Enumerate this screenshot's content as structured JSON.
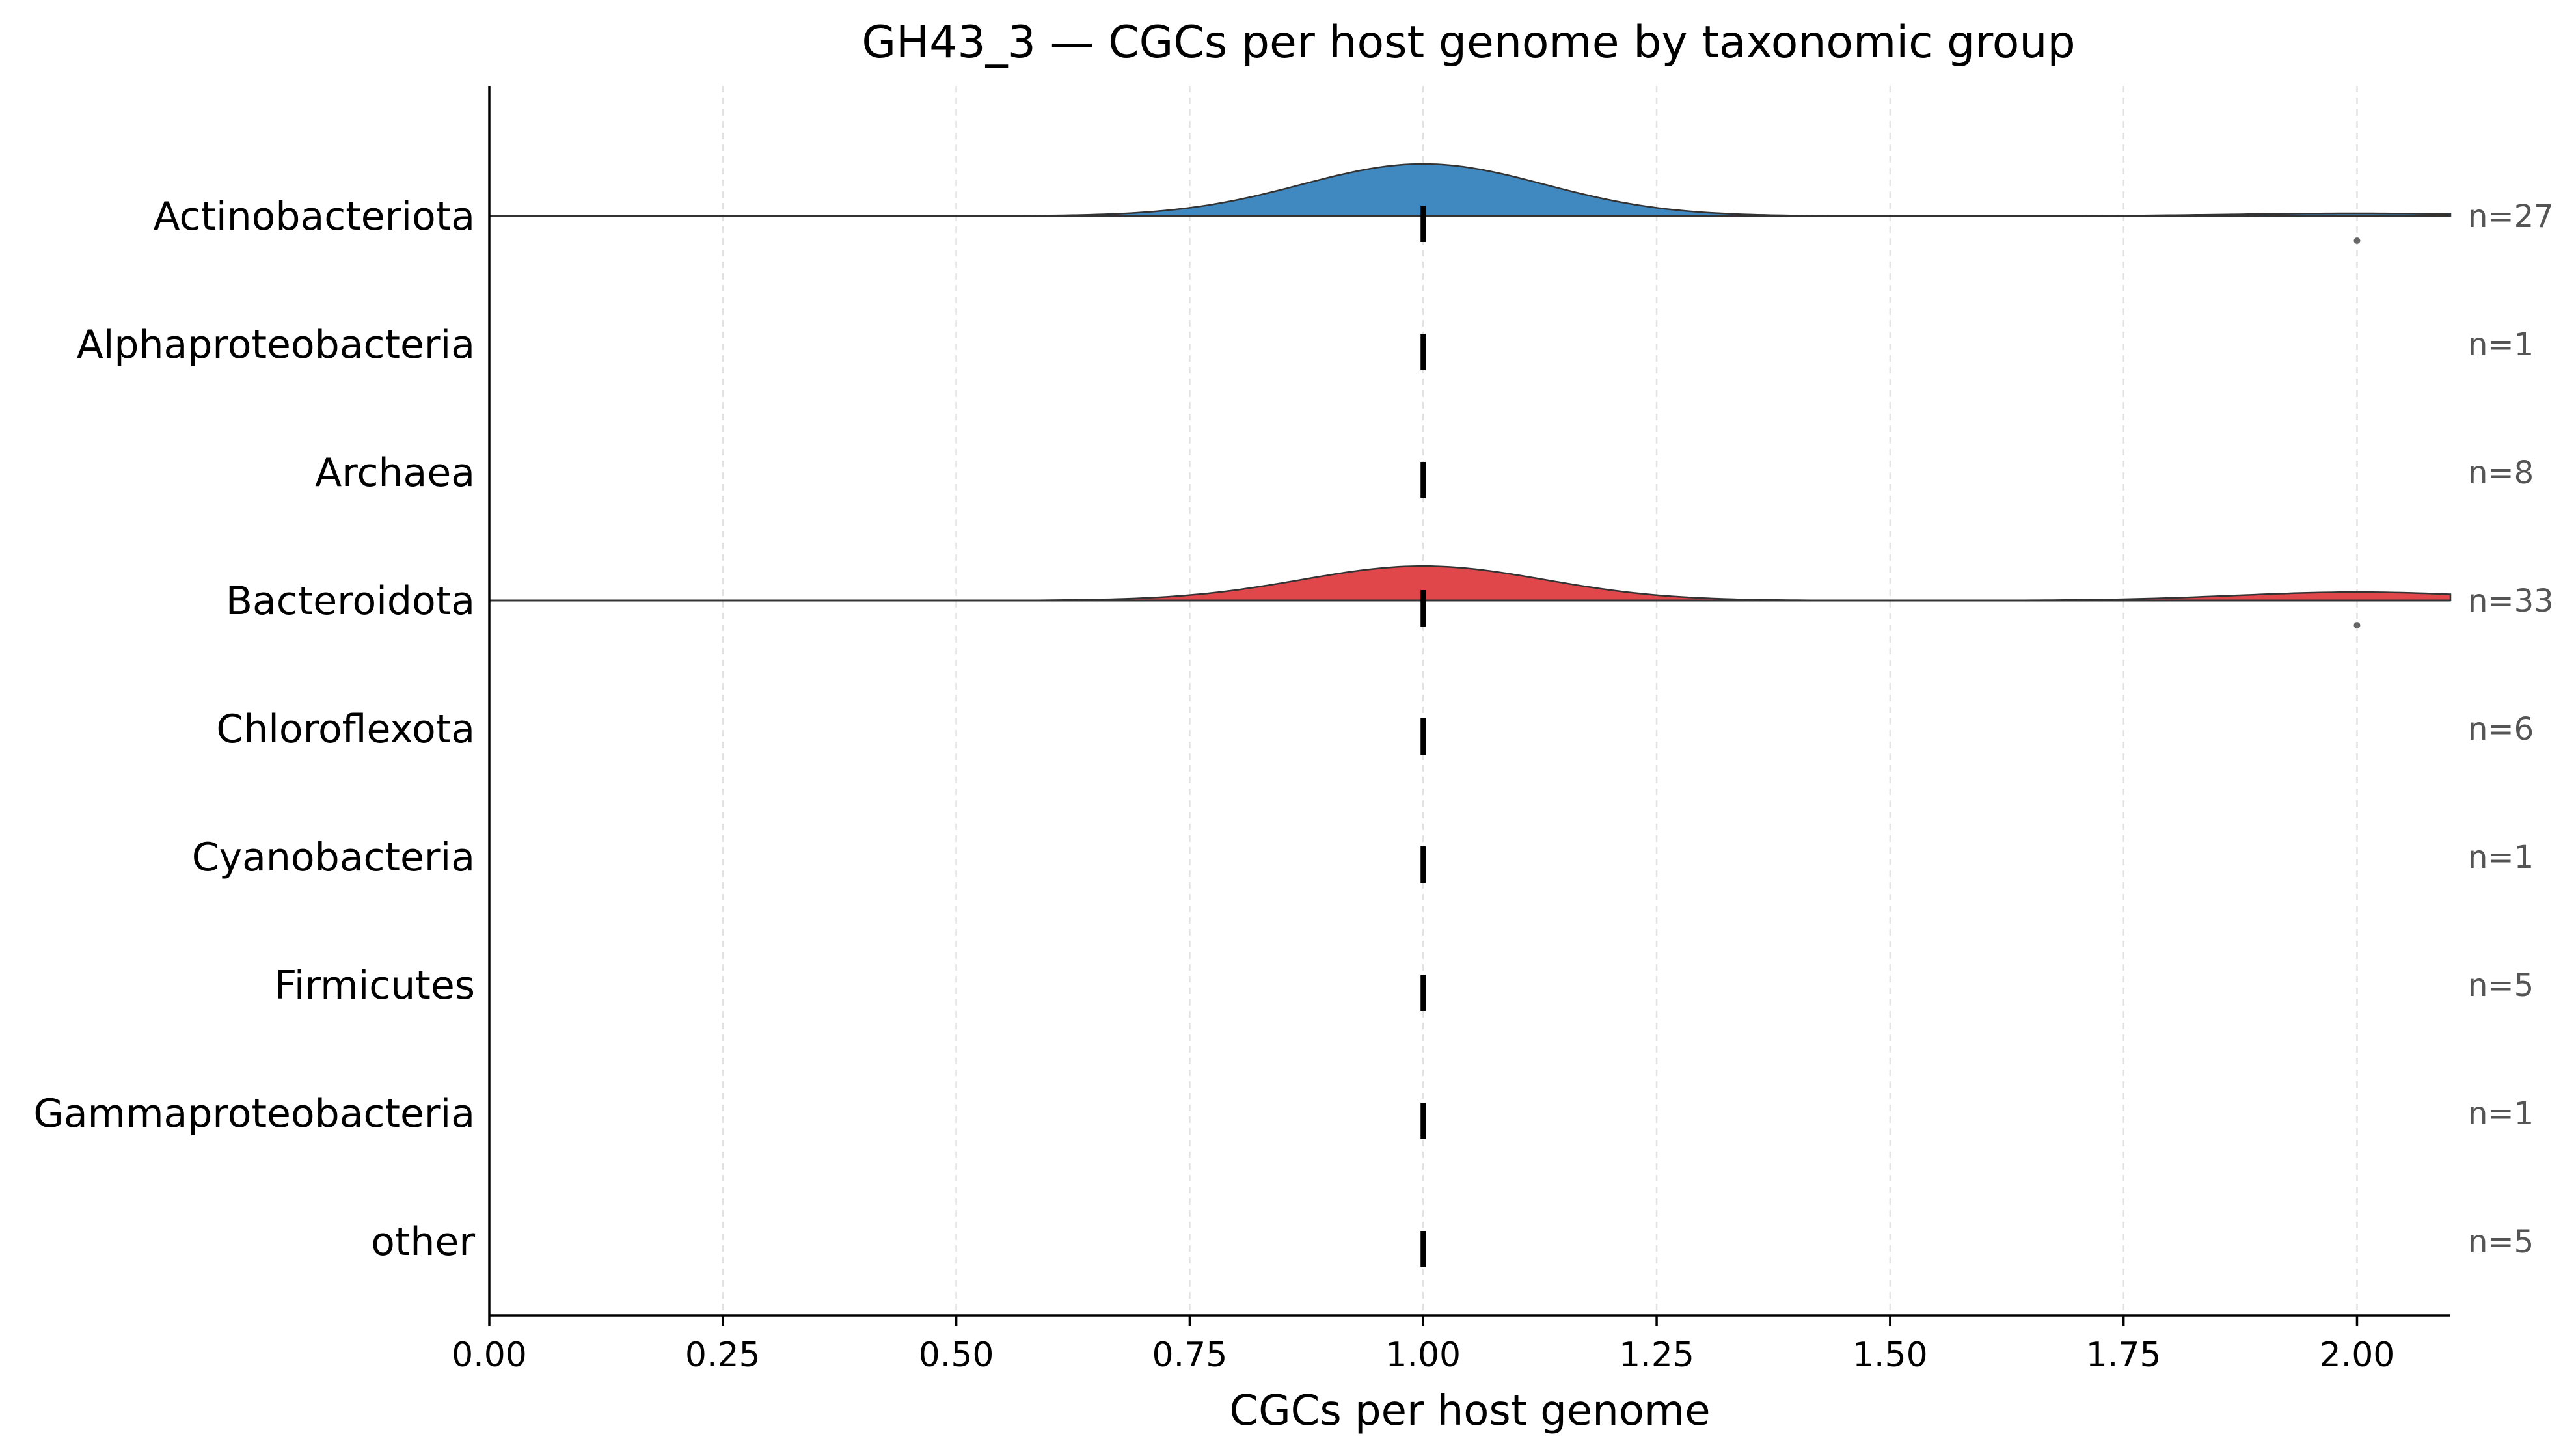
{
  "chart_data": {
    "type": "ridgeline",
    "title": "GH43_3 — CGCs per host genome by taxonomic group",
    "xlabel": "CGCs per host genome",
    "ylabel": "",
    "xlim": [
      0,
      2.1
    ],
    "xticks": [
      "0.00",
      "0.25",
      "0.50",
      "0.75",
      "1.00",
      "1.25",
      "1.50",
      "1.75",
      "2.00"
    ],
    "grid": "vertical dashed",
    "groups": [
      {
        "name": "Actinobacteriota",
        "n_label": "n=27",
        "n": 27,
        "median": 1.0,
        "color": "#3f88c0",
        "density": {
          "peak": 1.0,
          "peak_height": 1.0,
          "secondary": 2.0,
          "secondary_height": 0.05
        },
        "outliers": [
          2.0
        ]
      },
      {
        "name": "Alphaproteobacteria",
        "n_label": "n=1",
        "n": 1,
        "median": 1.0,
        "color": null,
        "outliers": []
      },
      {
        "name": "Archaea",
        "n_label": "n=8",
        "n": 8,
        "median": 1.0,
        "color": null,
        "outliers": []
      },
      {
        "name": "Bacteroidota",
        "n_label": "n=33",
        "n": 33,
        "median": 1.0,
        "color": "#e0474b",
        "density": {
          "peak": 1.0,
          "peak_height": 0.66,
          "secondary": 2.0,
          "secondary_height": 0.16
        },
        "outliers": [
          2.0
        ]
      },
      {
        "name": "Chloroflexota",
        "n_label": "n=6",
        "n": 6,
        "median": 1.0,
        "color": null,
        "outliers": []
      },
      {
        "name": "Cyanobacteria",
        "n_label": "n=1",
        "n": 1,
        "median": 1.0,
        "color": null,
        "outliers": []
      },
      {
        "name": "Firmicutes",
        "n_label": "n=5",
        "n": 5,
        "median": 1.0,
        "color": null,
        "outliers": []
      },
      {
        "name": "Gammaproteobacteria",
        "n_label": "n=1",
        "n": 1,
        "median": 1.0,
        "color": null,
        "outliers": []
      },
      {
        "name": "other",
        "n_label": "n=5",
        "n": 5,
        "median": 1.0,
        "color": null,
        "outliers": []
      }
    ]
  }
}
